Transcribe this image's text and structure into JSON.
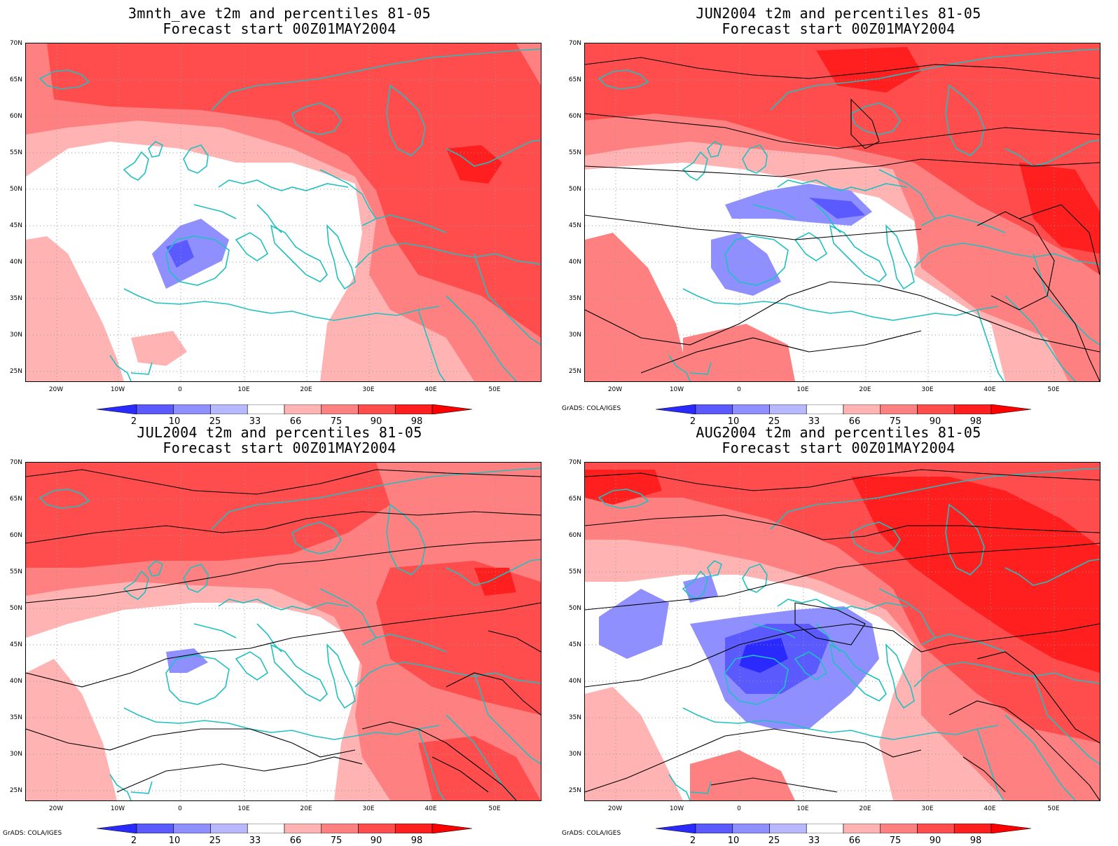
{
  "panels": [
    {
      "title1": "3mnth_ave t2m and percentiles 81-05",
      "title2": "Forecast start 00Z01MAY2004"
    },
    {
      "title1": "JUN2004 t2m and percentiles 81-05",
      "title2": "Forecast start 00Z01MAY2004"
    },
    {
      "title1": "JUL2004 t2m and percentiles 81-05",
      "title2": "Forecast start 00Z01MAY2004"
    },
    {
      "title1": "AUG2004 t2m and percentiles 81-05",
      "title2": "Forecast start 00Z01MAY2004"
    }
  ],
  "lat_labels": [
    "70N",
    "65N",
    "60N",
    "55N",
    "50N",
    "45N",
    "40N",
    "35N",
    "30N",
    "25N"
  ],
  "lon_labels": [
    "20W",
    "10W",
    "0",
    "10E",
    "20E",
    "30E",
    "40E",
    "50E"
  ],
  "colorbar": {
    "labels": [
      "2",
      "10",
      "25",
      "33",
      "66",
      "75",
      "90",
      "98"
    ],
    "colors": [
      "#2a2aff",
      "#5a5aff",
      "#8f8fff",
      "#b8b8ff",
      "#ffffff",
      "#ffb3b3",
      "#ff8080",
      "#ff4d4d",
      "#ff1f1f",
      "#ff0000"
    ]
  },
  "credit": "GrADS: COLA/IGES",
  "colors": {
    "coast": "#20c0c0",
    "grid": "#999999",
    "contour": "#000000"
  }
}
